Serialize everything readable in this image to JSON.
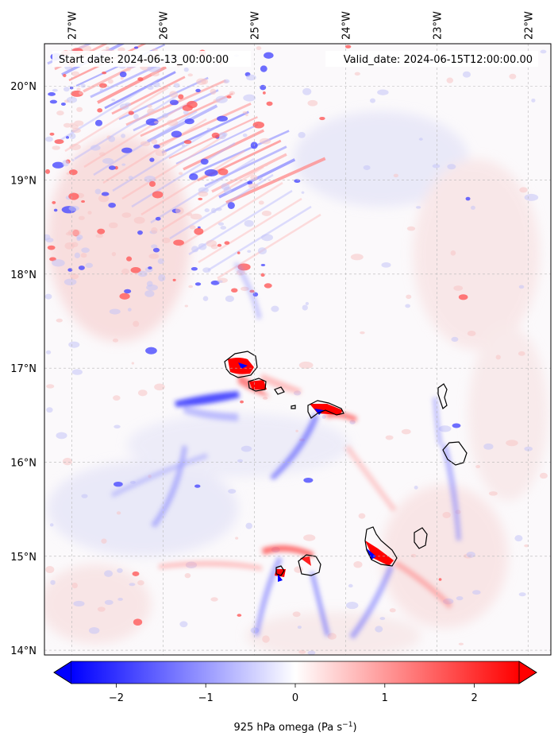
{
  "map": {
    "start_date": "Start date: 2024-06-13_00:00:00",
    "valid_date": "Valid_date: 2024-06-15T12:00:00.00",
    "lon_labels": [
      "27°W",
      "26°W",
      "25°W",
      "24°W",
      "23°W",
      "22°W"
    ],
    "lat_labels": [
      "20°N",
      "19°N",
      "18°N",
      "17°N",
      "16°N",
      "15°N",
      "14°N"
    ],
    "lon_values": [
      -27,
      -26,
      -25,
      -24,
      -23,
      -22
    ],
    "lat_values": [
      20,
      19,
      18,
      17,
      16,
      15,
      14
    ],
    "lon_range": [
      -27.3,
      -21.75
    ],
    "lat_range": [
      13.95,
      20.45
    ],
    "islands": [
      "Santo Antão",
      "São Vicente",
      "Santa Luzia",
      "São Nicolau",
      "Sal",
      "Boa Vista",
      "Maio",
      "Santiago",
      "Fogo",
      "Brava"
    ]
  },
  "colorbar": {
    "label_main": "925 hPa omega (Pa s",
    "label_sup": "−1",
    "label_end": ")",
    "tick_labels": [
      "−2",
      "−1",
      "0",
      "1",
      "2"
    ],
    "tick_values": [
      -2,
      -1,
      0,
      1,
      2
    ],
    "range": [
      -2.5,
      2.5
    ],
    "colors": {
      "negative": "#0000ff",
      "zero": "#ffffff",
      "positive": "#ff0000"
    },
    "extend": "both"
  }
}
